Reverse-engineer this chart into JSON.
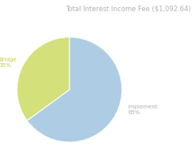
{
  "title": "Total Interest Income Fee ($1,092.64)",
  "slices": [
    {
      "label": "Implement",
      "pct": 65,
      "color": "#aecde4"
    },
    {
      "label": "Bridge",
      "pct": 35,
      "color": "#d4e07a"
    }
  ],
  "title_fontsize": 6.0,
  "label_fontsize": 5.0,
  "background_color": "#ffffff",
  "title_color": "#b0b0b0",
  "label_color_implement": "#b0b0b0",
  "label_color_bridge": "#c8c855",
  "startangle": 90
}
